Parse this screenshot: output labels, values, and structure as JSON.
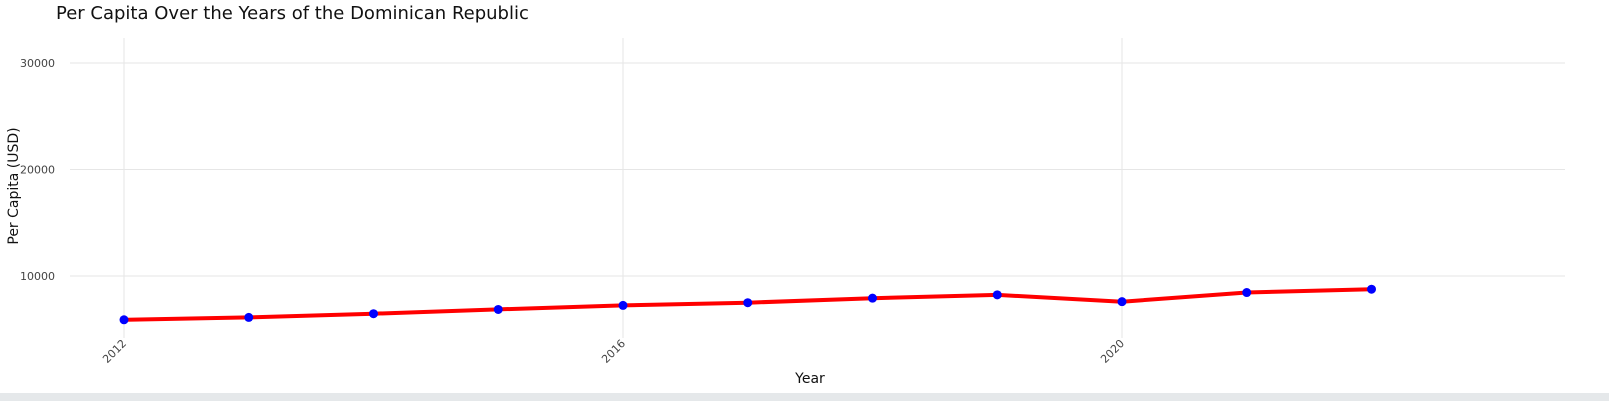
{
  "chart_data": {
    "type": "line",
    "title": "Per Capita Over the Years of the Dominican Republic",
    "xlabel": "Year",
    "ylabel": "Per Capita (USD)",
    "x": [
      2012,
      2013,
      2014,
      2015,
      2016,
      2017,
      2018,
      2019,
      2020,
      2021,
      2022
    ],
    "series": [
      {
        "values": [
          5890,
          6110,
          6460,
          6860,
          7240,
          7490,
          7920,
          8230,
          7590,
          8450,
          8760
        ]
      }
    ],
    "xlim": [
      2012,
      2023.35
    ],
    "ylim": [
      4000,
      32400
    ],
    "x_ticks": [
      2012,
      2016,
      2020
    ],
    "x_tick_labels": [
      "2012",
      "2016",
      "2020"
    ],
    "y_ticks": [
      10000,
      20000,
      30000
    ],
    "y_tick_labels": [
      "10000",
      "20000",
      "30000"
    ],
    "grid": true,
    "line_color": "#ff0000",
    "marker_color": "#0000ff",
    "grid_color": "#e6e6e6"
  }
}
